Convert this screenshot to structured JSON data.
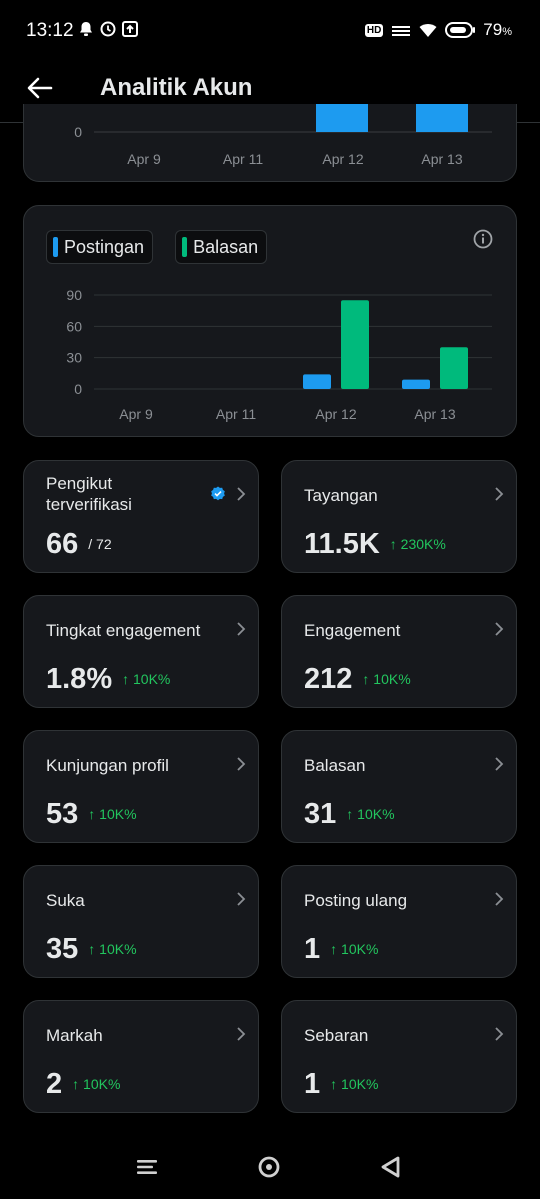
{
  "status_bar": {
    "time": "13:12",
    "battery": "79",
    "battery_unit": "%",
    "hd": "HD"
  },
  "header": {
    "title": "Analitik Akun"
  },
  "chart_top": {
    "type": "bar",
    "categories": [
      "Apr 9",
      "Apr 11",
      "Apr 12",
      "Apr 13"
    ],
    "tick_label": "0"
  },
  "chart_data": {
    "type": "bar",
    "categories": [
      "Apr 9",
      "Apr 11",
      "Apr 12",
      "Apr 13"
    ],
    "yticks": [
      0,
      30,
      60,
      90
    ],
    "ylim": [
      0,
      100
    ],
    "series": [
      {
        "name": "Postingan",
        "color": "#1d9bf0",
        "values": [
          0,
          0,
          14,
          9
        ]
      },
      {
        "name": "Balasan",
        "color": "#00ba7c",
        "values": [
          0,
          0,
          85,
          40
        ]
      }
    ],
    "legend": "top-left",
    "grid": true
  },
  "tiles": [
    {
      "label": "Pengikut terverifikasi",
      "value": "66",
      "sub": "/ 72",
      "change": "",
      "verified": true
    },
    {
      "label": "Tayangan",
      "value": "11.5K",
      "sub": "",
      "change": "↑ 230K%"
    },
    {
      "label": "Tingkat engagement",
      "value": "1.8%",
      "sub": "",
      "change": "↑ 10K%"
    },
    {
      "label": "Engagement",
      "value": "212",
      "sub": "",
      "change": "↑ 10K%"
    },
    {
      "label": "Kunjungan profil",
      "value": "53",
      "sub": "",
      "change": "↑ 10K%"
    },
    {
      "label": "Balasan",
      "value": "31",
      "sub": "",
      "change": "↑ 10K%"
    },
    {
      "label": "Suka",
      "value": "35",
      "sub": "",
      "change": "↑ 10K%"
    },
    {
      "label": "Posting ulang",
      "value": "1",
      "sub": "",
      "change": "↑ 10K%"
    },
    {
      "label": "Markah",
      "value": "2",
      "sub": "",
      "change": "↑ 10K%"
    },
    {
      "label": "Sebaran",
      "value": "1",
      "sub": "",
      "change": "↑ 10K%"
    }
  ]
}
